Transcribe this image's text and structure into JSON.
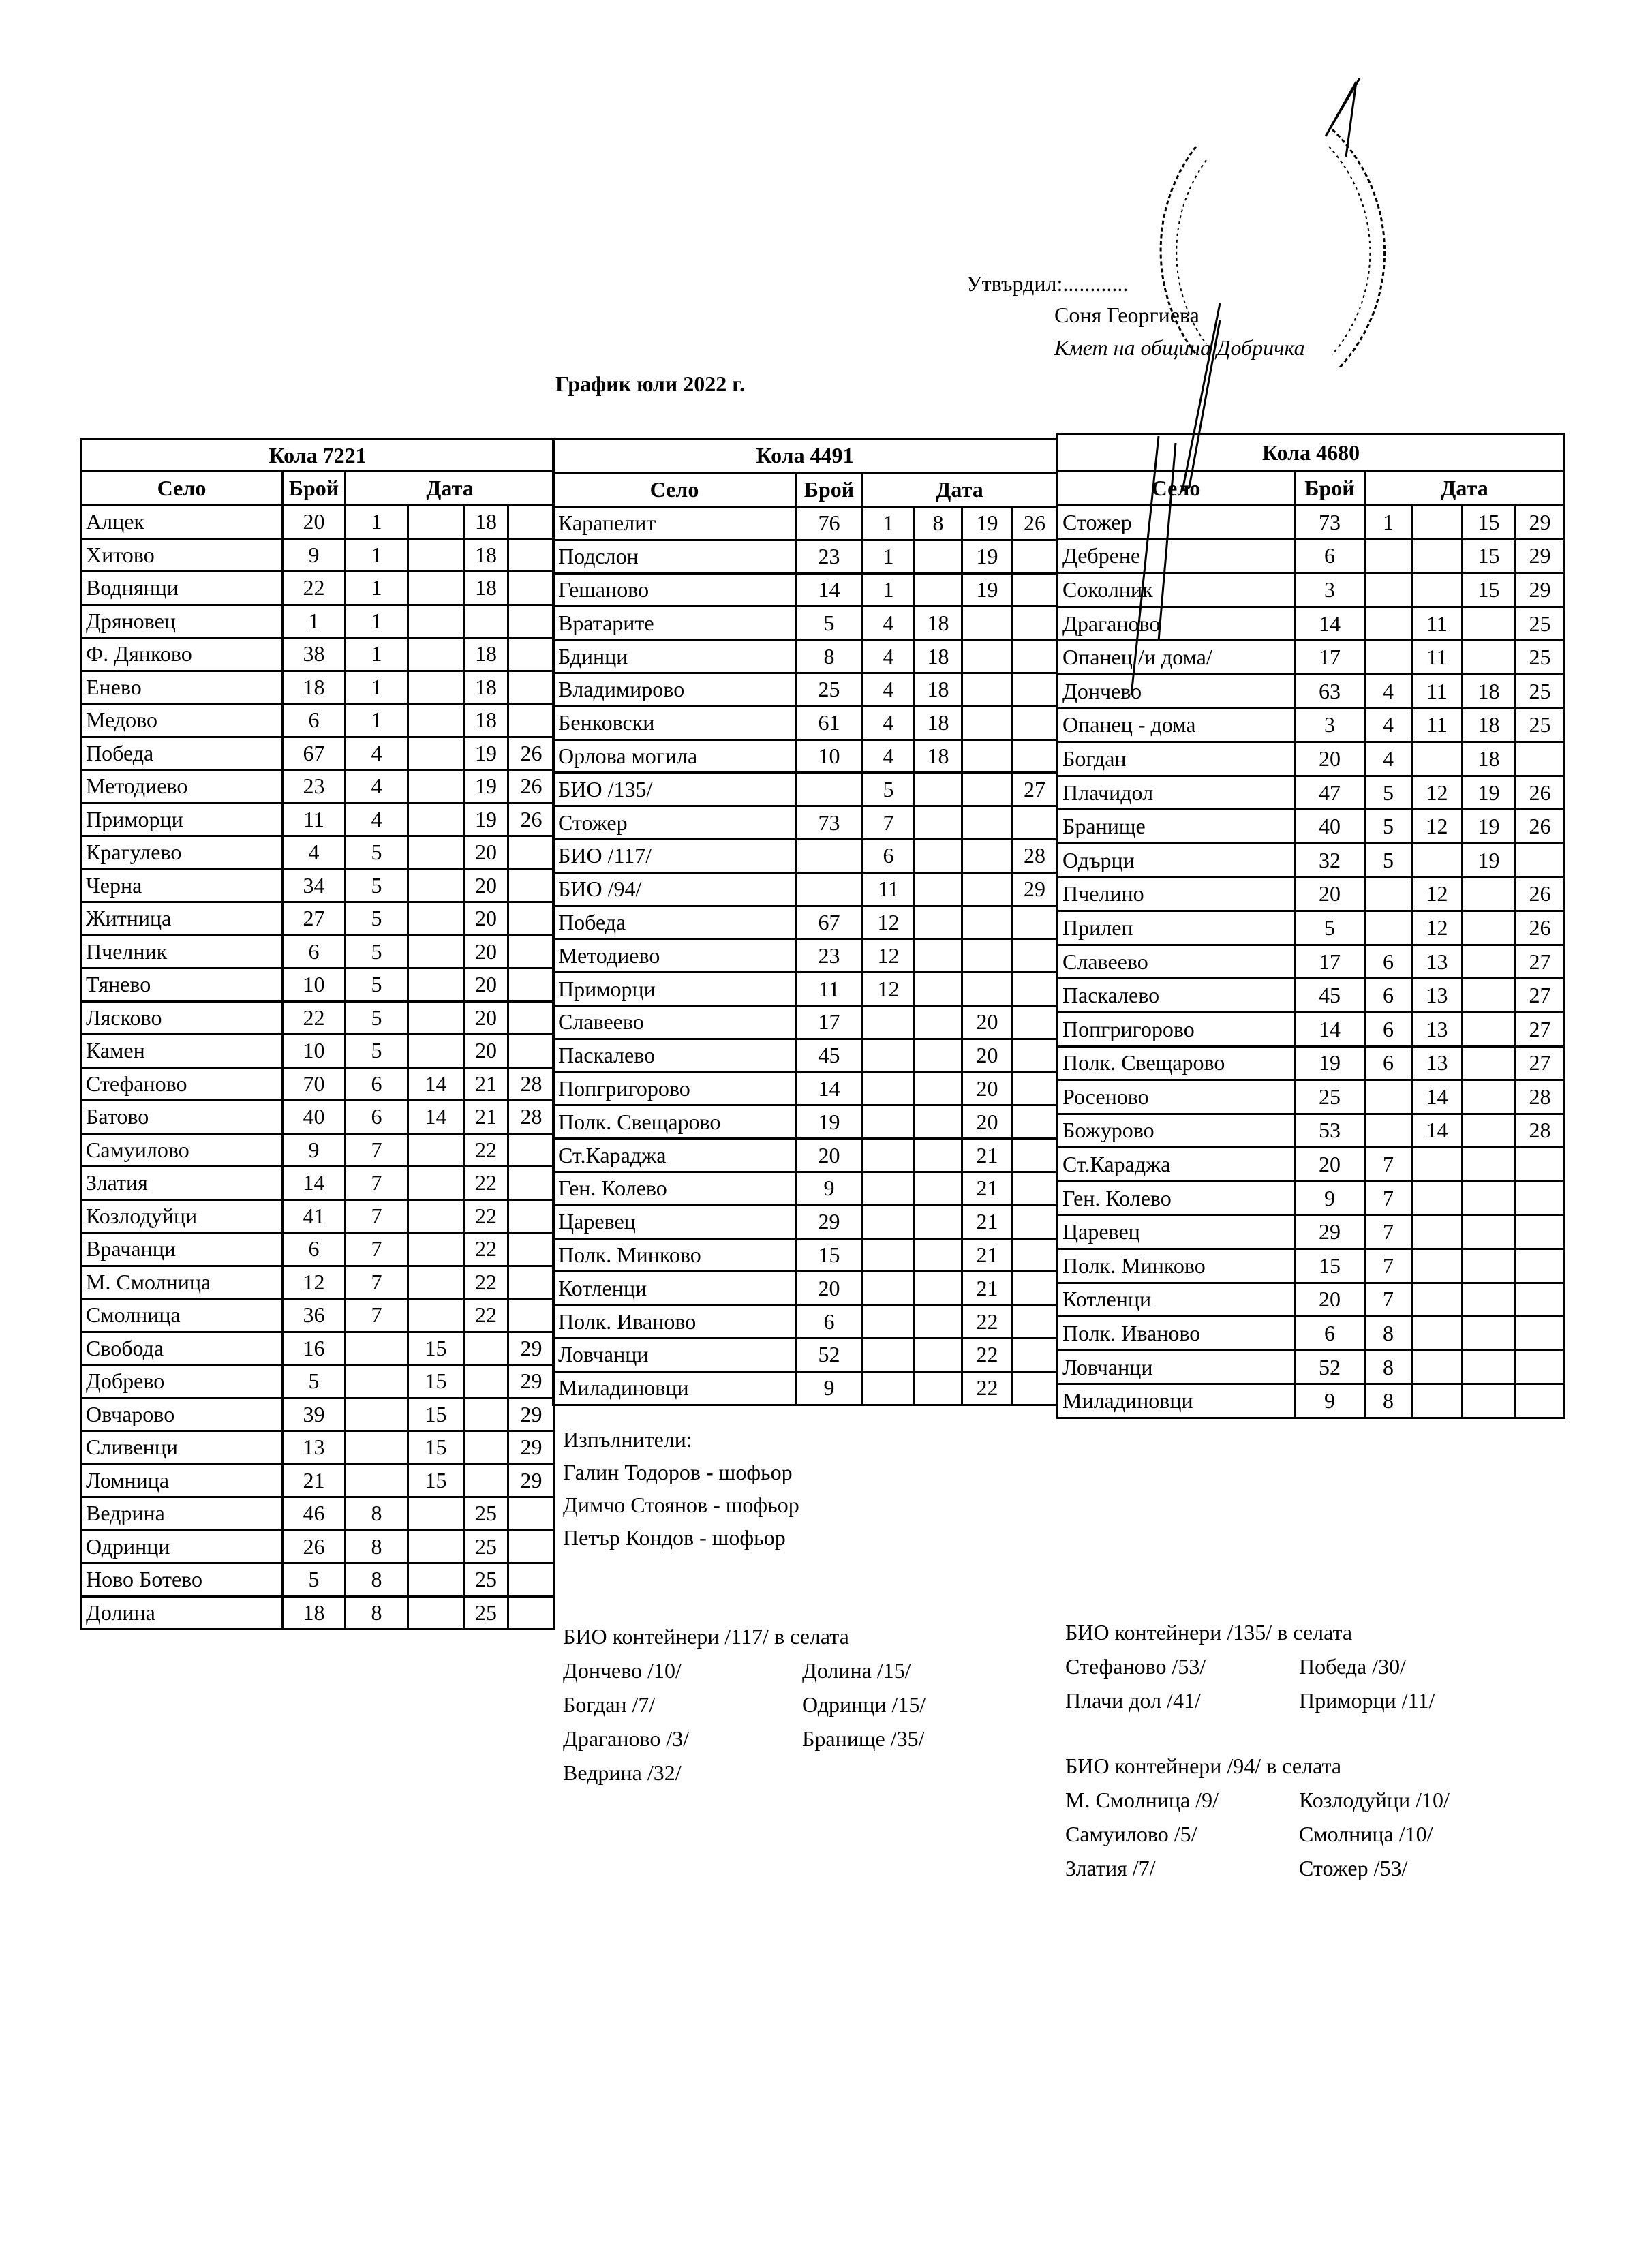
{
  "approval": {
    "approved_by": "Утвърдил:............",
    "name": "Соня Георгиева",
    "position": "Кмет  на община Добричка"
  },
  "title": "График юли 2022 г.",
  "column_headers": {
    "village": "Село",
    "count": "Брой",
    "date": "Дата"
  },
  "tables": [
    {
      "title": "Кола 7221",
      "rows": [
        [
          "Алцек",
          "20",
          "1",
          "",
          "18",
          ""
        ],
        [
          "Хитово",
          "9",
          "1",
          "",
          "18",
          ""
        ],
        [
          "Воднянци",
          "22",
          "1",
          "",
          "18",
          ""
        ],
        [
          "Дряновец",
          "1",
          "1",
          "",
          "",
          ""
        ],
        [
          "Ф. Дянково",
          "38",
          "1",
          "",
          "18",
          ""
        ],
        [
          "Енево",
          "18",
          "1",
          "",
          "18",
          ""
        ],
        [
          "Медово",
          "6",
          "1",
          "",
          "18",
          ""
        ],
        [
          "Победа",
          "67",
          "4",
          "",
          "19",
          "26"
        ],
        [
          "Методиево",
          "23",
          "4",
          "",
          "19",
          "26"
        ],
        [
          "Приморци",
          "11",
          "4",
          "",
          "19",
          "26"
        ],
        [
          "Крагулево",
          "4",
          "5",
          "",
          "20",
          ""
        ],
        [
          "Черна",
          "34",
          "5",
          "",
          "20",
          ""
        ],
        [
          "Житница",
          "27",
          "5",
          "",
          "20",
          ""
        ],
        [
          "Пчелник",
          "6",
          "5",
          "",
          "20",
          ""
        ],
        [
          "Тянево",
          "10",
          "5",
          "",
          "20",
          ""
        ],
        [
          "Лясково",
          "22",
          "5",
          "",
          "20",
          ""
        ],
        [
          "Камен",
          "10",
          "5",
          "",
          "20",
          ""
        ],
        [
          "Стефаново",
          "70",
          "6",
          "14",
          "21",
          "28"
        ],
        [
          "Батово",
          "40",
          "6",
          "14",
          "21",
          "28"
        ],
        [
          "Самуилово",
          "9",
          "7",
          "",
          "22",
          ""
        ],
        [
          "Златия",
          "14",
          "7",
          "",
          "22",
          ""
        ],
        [
          "Козлодуйци",
          "41",
          "7",
          "",
          "22",
          ""
        ],
        [
          "Врачанци",
          "6",
          "7",
          "",
          "22",
          ""
        ],
        [
          "М. Смолница",
          "12",
          "7",
          "",
          "22",
          ""
        ],
        [
          "Смолница",
          "36",
          "7",
          "",
          "22",
          ""
        ],
        [
          "Свобода",
          "16",
          "",
          "15",
          "",
          "29"
        ],
        [
          "Добрево",
          "5",
          "",
          "15",
          "",
          "29"
        ],
        [
          "Овчарово",
          "39",
          "",
          "15",
          "",
          "29"
        ],
        [
          "Сливенци",
          "13",
          "",
          "15",
          "",
          "29"
        ],
        [
          "Ломница",
          "21",
          "",
          "15",
          "",
          "29"
        ],
        [
          "Ведрина",
          "46",
          "8",
          "",
          "25",
          ""
        ],
        [
          "Одринци",
          "26",
          "8",
          "",
          "25",
          ""
        ],
        [
          "Ново Ботево",
          "5",
          "8",
          "",
          "25",
          ""
        ],
        [
          "Долина",
          "18",
          "8",
          "",
          "25",
          ""
        ]
      ]
    },
    {
      "title": "Кола 4491",
      "rows": [
        [
          "Карапелит",
          "76",
          "1",
          "8",
          "19",
          "26"
        ],
        [
          "Подслон",
          "23",
          "1",
          "",
          "19",
          ""
        ],
        [
          "Гешаново",
          "14",
          "1",
          "",
          "19",
          ""
        ],
        [
          "Вратарите",
          "5",
          "4",
          "18",
          "",
          ""
        ],
        [
          "Бдинци",
          "8",
          "4",
          "18",
          "",
          ""
        ],
        [
          "Владимирово",
          "25",
          "4",
          "18",
          "",
          ""
        ],
        [
          "Бенковски",
          "61",
          "4",
          "18",
          "",
          ""
        ],
        [
          "Орлова могила",
          "10",
          "4",
          "18",
          "",
          ""
        ],
        [
          "БИО /135/",
          "",
          "5",
          "",
          "",
          "27"
        ],
        [
          "Стожер",
          "73",
          "7",
          "",
          "",
          ""
        ],
        [
          "БИО /117/",
          "",
          "6",
          "",
          "",
          "28"
        ],
        [
          "БИО /94/",
          "",
          "11",
          "",
          "",
          "29"
        ],
        [
          "Победа",
          "67",
          "12",
          "",
          "",
          ""
        ],
        [
          "Методиево",
          "23",
          "12",
          "",
          "",
          ""
        ],
        [
          "Приморци",
          "11",
          "12",
          "",
          "",
          ""
        ],
        [
          "Славеево",
          "17",
          "",
          "",
          "20",
          ""
        ],
        [
          "Паскалево",
          "45",
          "",
          "",
          "20",
          ""
        ],
        [
          "Попгригорово",
          "14",
          "",
          "",
          "20",
          ""
        ],
        [
          "Полк. Свещарово",
          "19",
          "",
          "",
          "20",
          ""
        ],
        [
          "Ст.Караджа",
          "20",
          "",
          "",
          "21",
          ""
        ],
        [
          "Ген. Колево",
          "9",
          "",
          "",
          "21",
          ""
        ],
        [
          "Царевец",
          "29",
          "",
          "",
          "21",
          ""
        ],
        [
          "Полк. Минково",
          "15",
          "",
          "",
          "21",
          ""
        ],
        [
          "Котленци",
          "20",
          "",
          "",
          "21",
          ""
        ],
        [
          "Полк. Иваново",
          "6",
          "",
          "",
          "22",
          ""
        ],
        [
          "Ловчанци",
          "52",
          "",
          "",
          "22",
          ""
        ],
        [
          "Миладиновци",
          "9",
          "",
          "",
          "22",
          ""
        ]
      ]
    },
    {
      "title": "Кола 4680",
      "rows": [
        [
          "Стожер",
          "73",
          "1",
          "",
          "15",
          "29"
        ],
        [
          "Дебрене",
          "6",
          "",
          "",
          "15",
          "29"
        ],
        [
          "Соколник",
          "3",
          "",
          "",
          "15",
          "29"
        ],
        [
          "Драганово",
          "14",
          "",
          "11",
          "",
          "25"
        ],
        [
          "Опанец /и дома/",
          "17",
          "",
          "11",
          "",
          "25"
        ],
        [
          "Дончево",
          "63",
          "4",
          "11",
          "18",
          "25"
        ],
        [
          "Опанец - дома",
          "3",
          "4",
          "11",
          "18",
          "25"
        ],
        [
          "Богдан",
          "20",
          "4",
          "",
          "18",
          ""
        ],
        [
          "Плачидол",
          "47",
          "5",
          "12",
          "19",
          "26"
        ],
        [
          "Бранище",
          "40",
          "5",
          "12",
          "19",
          "26"
        ],
        [
          "Одърци",
          "32",
          "5",
          "",
          "19",
          ""
        ],
        [
          "Пчелино",
          "20",
          "",
          "12",
          "",
          "26"
        ],
        [
          "Прилеп",
          "5",
          "",
          "12",
          "",
          "26"
        ],
        [
          "Славеево",
          "17",
          "6",
          "13",
          "",
          "27"
        ],
        [
          "Паскалево",
          "45",
          "6",
          "13",
          "",
          "27"
        ],
        [
          "Попгригорово",
          "14",
          "6",
          "13",
          "",
          "27"
        ],
        [
          "Полк. Свещарово",
          "19",
          "6",
          "13",
          "",
          "27"
        ],
        [
          "Росеново",
          "25",
          "",
          "14",
          "",
          "28"
        ],
        [
          "Божурово",
          "53",
          "",
          "14",
          "",
          "28"
        ],
        [
          "Ст.Караджа",
          "20",
          "7",
          "",
          "",
          ""
        ],
        [
          "Ген. Колево",
          "9",
          "7",
          "",
          "",
          ""
        ],
        [
          "Царевец",
          "29",
          "7",
          "",
          "",
          ""
        ],
        [
          "Полк. Минково",
          "15",
          "7",
          "",
          "",
          ""
        ],
        [
          "Котленци",
          "20",
          "7",
          "",
          "",
          ""
        ],
        [
          "Полк. Иваново",
          "6",
          "8",
          "",
          "",
          ""
        ],
        [
          "Ловчанци",
          "52",
          "8",
          "",
          "",
          ""
        ],
        [
          "Миладиновци",
          "9",
          "8",
          "",
          "",
          ""
        ]
      ]
    }
  ],
  "executors": {
    "heading": "Изпълнители:",
    "people": [
      "Галин Тодоров - шофьор",
      "Димчо Стоянов - шофьор",
      "Петър Кондов - шофьор"
    ]
  },
  "bio_117": {
    "heading": "БИО контейнери /117/ в селата",
    "col1": [
      "Дончево /10/",
      "Богдан /7/",
      "Драганово /3/",
      "Ведрина /32/"
    ],
    "col2": [
      "Долина /15/",
      "Одринци /15/",
      "Бранище /35/"
    ]
  },
  "bio_135": {
    "heading": "БИО контейнери /135/ в селата",
    "col1": [
      "Стефаново /53/",
      "Плачи дол /41/"
    ],
    "col2": [
      "Победа /30/",
      "Приморци /11/"
    ]
  },
  "bio_94": {
    "heading": "БИО контейнери /94/ в селата",
    "col1": [
      "М. Смолница /9/",
      "Самуилово /5/",
      "Златия /7/"
    ],
    "col2": [
      "Козлодуйци /10/",
      "Смолница /10/",
      "Стожер /53/"
    ]
  }
}
